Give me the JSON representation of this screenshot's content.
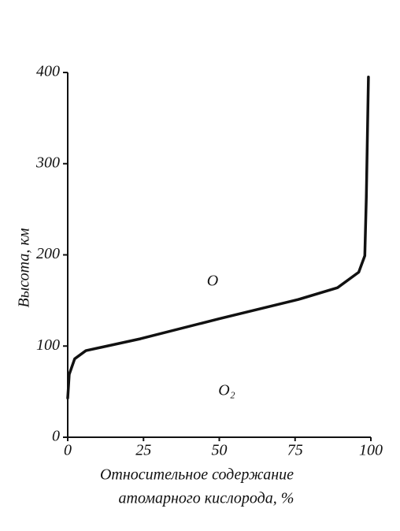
{
  "chart_data": {
    "type": "line",
    "ylabel": "Высота, км",
    "xlabel": [
      "Относительное содержание",
      "атомарного кислорода, %"
    ],
    "annotations": [
      "O",
      "O₂"
    ],
    "x": [
      0,
      0.5,
      2.3,
      6,
      24,
      50,
      76,
      89,
      96,
      98,
      98.5,
      99.2
    ],
    "values": [
      43,
      69,
      86,
      95,
      108,
      130,
      151,
      164,
      181,
      199,
      263,
      395
    ],
    "color": "#111111",
    "xlim": [
      0,
      100
    ],
    "xticks": [
      0,
      25,
      50,
      75,
      100
    ],
    "ylim": [
      0,
      400
    ],
    "yticks": [
      0,
      100,
      200,
      300,
      400
    ],
    "grid": false
  }
}
